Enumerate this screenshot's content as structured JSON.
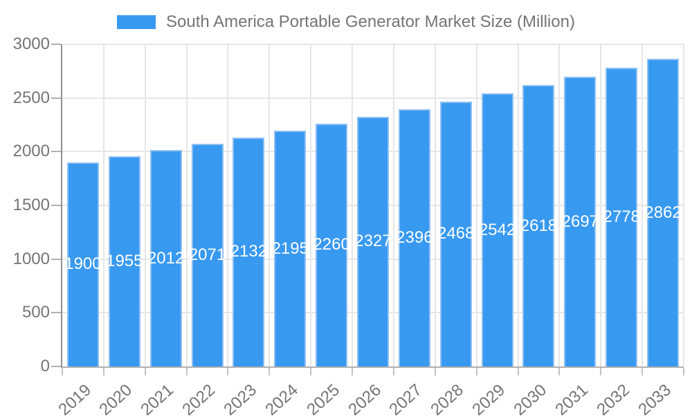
{
  "chart_data": {
    "type": "bar",
    "title": "South America Portable Generator Market Size (Million)",
    "categories": [
      "2019",
      "2020",
      "2021",
      "2022",
      "2023",
      "2024",
      "2025",
      "2026",
      "2027",
      "2028",
      "2029",
      "2030",
      "2031",
      "2032",
      "2033"
    ],
    "values": [
      1900,
      1955,
      2012,
      2071,
      2132,
      2195,
      2260,
      2327,
      2396,
      2468,
      2542,
      2618,
      2697,
      2778,
      2862
    ],
    "xlabel": "",
    "ylabel": "",
    "ylim": [
      0,
      3000
    ],
    "yticks": [
      0,
      500,
      1000,
      1500,
      2000,
      2500,
      3000
    ],
    "grid": true,
    "legend_position": "top",
    "value_labels": "inside-center",
    "colors": {
      "bar": "#3899F0",
      "bar_edge": "#8fc0f2",
      "gridline": "#e6e6e6",
      "axis_line_left": "#8f8f8f",
      "axis_line_bottom": "#b0b0b0",
      "tick": "#c2c2c2",
      "axis_text": "#757575",
      "value_text": "#ffffff",
      "background": "#ffffff"
    }
  }
}
